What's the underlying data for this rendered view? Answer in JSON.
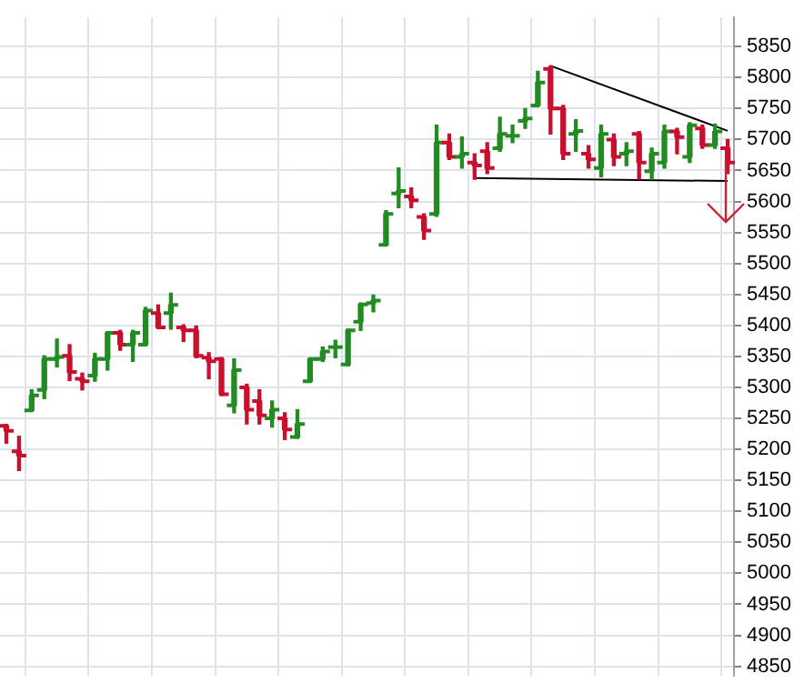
{
  "chart_data": {
    "type": "candlestick",
    "categories": [
      null,
      null,
      null,
      null,
      null,
      null,
      null,
      null,
      null,
      null,
      null,
      null,
      null,
      null,
      null,
      null,
      null,
      null,
      null,
      null,
      null,
      null,
      null,
      null,
      null,
      null,
      null,
      null,
      null,
      null,
      null,
      null,
      null,
      null,
      null,
      null,
      null,
      null,
      null,
      null,
      null,
      null,
      null,
      null,
      null,
      null,
      null,
      null,
      null,
      null,
      null,
      null,
      null,
      null,
      null,
      null,
      null,
      null
    ],
    "ohlc": [
      [
        5238,
        5240,
        5210,
        5230
      ],
      [
        5197,
        5221,
        5166,
        5190
      ],
      [
        5263,
        5296,
        5263,
        5287
      ],
      [
        5296,
        5351,
        5282,
        5346
      ],
      [
        5346,
        5378,
        5333,
        5349
      ],
      [
        5351,
        5369,
        5311,
        5325
      ],
      [
        5314,
        5323,
        5296,
        5310
      ],
      [
        5319,
        5355,
        5310,
        5346
      ],
      [
        5346,
        5390,
        5328,
        5388
      ],
      [
        5388,
        5392,
        5360,
        5369
      ],
      [
        5369,
        5392,
        5342,
        5388
      ],
      [
        5369,
        5429,
        5369,
        5424
      ],
      [
        5420,
        5433,
        5397,
        5397
      ],
      [
        5420,
        5452,
        5394,
        5433
      ],
      [
        5397,
        5401,
        5374,
        5392
      ],
      [
        5392,
        5399,
        5348,
        5351
      ],
      [
        5348,
        5356,
        5314,
        5342
      ],
      [
        5346,
        5348,
        5287,
        5289
      ],
      [
        5271,
        5346,
        5259,
        5328
      ],
      [
        5300,
        5305,
        5241,
        5264
      ],
      [
        5278,
        5296,
        5241,
        5255
      ],
      [
        5250,
        5278,
        5236,
        5264
      ],
      [
        5250,
        5259,
        5216,
        5232
      ],
      [
        5220,
        5264,
        5218,
        5241
      ],
      [
        5310,
        5346,
        5310,
        5346
      ],
      [
        5346,
        5365,
        5342,
        5358
      ],
      [
        5365,
        5376,
        5348,
        5365
      ],
      [
        5337,
        5394,
        5335,
        5392
      ],
      [
        5406,
        5436,
        5392,
        5434
      ],
      [
        5436,
        5449,
        5422,
        5440
      ],
      [
        5530,
        5585,
        5530,
        5580
      ],
      [
        5613,
        5654,
        5590,
        5617
      ],
      [
        5608,
        5622,
        5590,
        5602
      ],
      [
        5575,
        5580,
        5539,
        5553
      ],
      [
        5580,
        5723,
        5576,
        5695
      ],
      [
        5695,
        5709,
        5668,
        5672
      ],
      [
        5672,
        5704,
        5654,
        5677
      ],
      [
        5663,
        5677,
        5636,
        5658
      ],
      [
        5681,
        5695,
        5645,
        5654
      ],
      [
        5686,
        5736,
        5681,
        5709
      ],
      [
        5706,
        5723,
        5695,
        5706
      ],
      [
        5730,
        5750,
        5718,
        5734
      ],
      [
        5755,
        5810,
        5755,
        5792
      ],
      [
        5814,
        5819,
        5709,
        5750
      ],
      [
        5750,
        5755,
        5668,
        5677
      ],
      [
        5709,
        5732,
        5681,
        5714
      ],
      [
        5677,
        5690,
        5654,
        5668
      ],
      [
        5654,
        5723,
        5640,
        5709
      ],
      [
        5700,
        5709,
        5658,
        5672
      ],
      [
        5677,
        5695,
        5658,
        5681
      ],
      [
        5709,
        5713,
        5636,
        5663
      ],
      [
        5649,
        5686,
        5636,
        5677
      ],
      [
        5663,
        5723,
        5654,
        5713
      ],
      [
        5713,
        5718,
        5677,
        5704
      ],
      [
        5672,
        5727,
        5663,
        5723
      ],
      [
        5718,
        5723,
        5686,
        5691
      ],
      [
        5691,
        5725,
        5686,
        5713
      ],
      [
        5686,
        5700,
        5645,
        5663
      ]
    ],
    "colors": [
      "#c8102e",
      "#c8102e",
      "#228b22",
      "#228b22",
      "#228b22",
      "#c8102e",
      "#c8102e",
      "#228b22",
      "#228b22",
      "#c8102e",
      "#228b22",
      "#228b22",
      "#c8102e",
      "#228b22",
      "#c8102e",
      "#c8102e",
      "#c8102e",
      "#c8102e",
      "#228b22",
      "#c8102e",
      "#c8102e",
      "#228b22",
      "#c8102e",
      "#228b22",
      "#228b22",
      "#228b22",
      "#228b22",
      "#228b22",
      "#228b22",
      "#228b22",
      "#228b22",
      "#228b22",
      "#c8102e",
      "#c8102e",
      "#228b22",
      "#c8102e",
      "#228b22",
      "#c8102e",
      "#c8102e",
      "#228b22",
      "#228b22",
      "#228b22",
      "#228b22",
      "#c8102e",
      "#c8102e",
      "#228b22",
      "#c8102e",
      "#228b22",
      "#c8102e",
      "#228b22",
      "#c8102e",
      "#228b22",
      "#228b22",
      "#c8102e",
      "#228b22",
      "#c8102e",
      "#228b22",
      "#c8102e"
    ],
    "series": [
      {
        "type": "line",
        "color": "#000000",
        "values": [
          null,
          null,
          null,
          null,
          null,
          null,
          null,
          null,
          null,
          null,
          null,
          null,
          null,
          null,
          null,
          null,
          null,
          null,
          null,
          null,
          null,
          null,
          null,
          null,
          null,
          null,
          null,
          null,
          null,
          null,
          null,
          null,
          null,
          null,
          null,
          null,
          null,
          null,
          null,
          null,
          null,
          null,
          null,
          5819,
          null,
          null,
          null,
          null,
          null,
          null,
          null,
          null,
          null,
          null,
          null,
          null,
          null,
          5714
        ]
      },
      {
        "type": "line",
        "color": "#000000",
        "values": [
          null,
          null,
          null,
          null,
          null,
          null,
          null,
          null,
          null,
          null,
          null,
          null,
          null,
          null,
          null,
          null,
          null,
          null,
          null,
          null,
          null,
          null,
          null,
          null,
          null,
          null,
          null,
          null,
          null,
          null,
          null,
          null,
          null,
          null,
          null,
          null,
          null,
          5638,
          null,
          null,
          null,
          null,
          null,
          null,
          null,
          null,
          null,
          null,
          null,
          null,
          null,
          null,
          null,
          null,
          null,
          null,
          null,
          5633
        ]
      }
    ],
    "ylim": [
      4835,
      5897
    ],
    "yticks": [
      4850,
      4900,
      4950,
      5000,
      5050,
      5100,
      5150,
      5200,
      5250,
      5300,
      5350,
      5400,
      5450,
      5500,
      5550,
      5600,
      5650,
      5700,
      5750,
      5800,
      5850
    ],
    "grid": true,
    "tick_labels": "y"
  }
}
